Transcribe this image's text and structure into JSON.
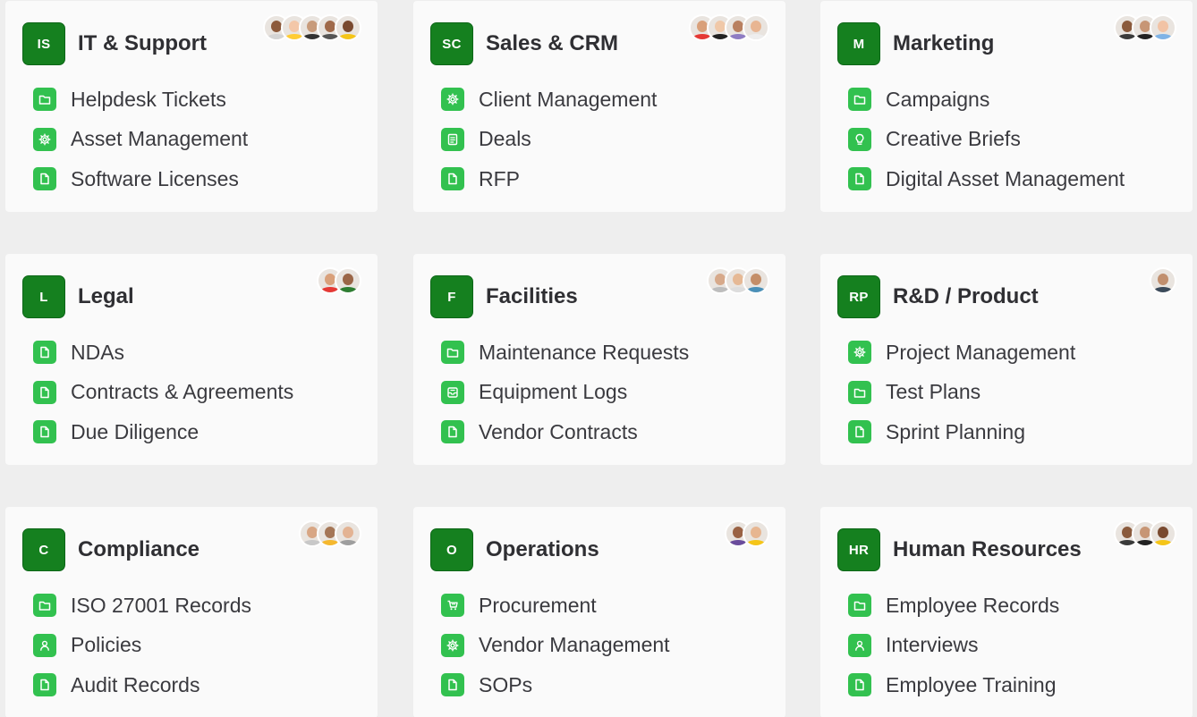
{
  "colors": {
    "background": "#eeeeee",
    "card": "#fafafa",
    "badge": "#15801f",
    "icon": "#32c14f",
    "title": "#2f2f33",
    "text": "#3a3a3f"
  },
  "workspaces": [
    {
      "initials": "IS",
      "name": "IT & Support",
      "members": [
        {
          "skin": "#8d5a3b",
          "shirt": "#d4d4d4"
        },
        {
          "skin": "#f3c7a8",
          "shirt": "#ffcc33"
        },
        {
          "skin": "#c89b7b",
          "shirt": "#333333"
        },
        {
          "skin": "#a06a4a",
          "shirt": "#555555"
        },
        {
          "skin": "#7a4a30",
          "shirt": "#f5c518"
        }
      ],
      "items": [
        {
          "icon": "folder-icon",
          "label": "Helpdesk Tickets"
        },
        {
          "icon": "gear-icon",
          "label": "Asset Management"
        },
        {
          "icon": "document-icon",
          "label": "Software Licenses"
        }
      ]
    },
    {
      "initials": "SC",
      "name": "Sales & CRM",
      "members": [
        {
          "skin": "#d9a07a",
          "shirt": "#e53935"
        },
        {
          "skin": "#f0c8a8",
          "shirt": "#222222"
        },
        {
          "skin": "#b98060",
          "shirt": "#8e7cc3"
        },
        {
          "skin": "#e8b592",
          "shirt": "#eeeeee"
        }
      ],
      "items": [
        {
          "icon": "gear-icon",
          "label": "Client Management"
        },
        {
          "icon": "clipboard-icon",
          "label": "Deals"
        },
        {
          "icon": "document-icon",
          "label": "RFP"
        }
      ]
    },
    {
      "initials": "M",
      "name": "Marketing",
      "members": [
        {
          "skin": "#8a5a3c",
          "shirt": "#3a3a3a"
        },
        {
          "skin": "#c79675",
          "shirt": "#222222"
        },
        {
          "skin": "#f2c3a5",
          "shirt": "#7fb3e6"
        }
      ],
      "items": [
        {
          "icon": "folder-icon",
          "label": "Campaigns"
        },
        {
          "icon": "lightbulb-icon",
          "label": "Creative Briefs"
        },
        {
          "icon": "document-icon",
          "label": "Digital Asset Management"
        }
      ]
    },
    {
      "initials": "L",
      "name": "Legal",
      "members": [
        {
          "skin": "#d9a07a",
          "shirt": "#e53935"
        },
        {
          "skin": "#9b6647",
          "shirt": "#2e7d32"
        }
      ],
      "items": [
        {
          "icon": "document-icon",
          "label": "NDAs"
        },
        {
          "icon": "document-icon",
          "label": "Contracts & Agreements"
        },
        {
          "icon": "document-icon",
          "label": "Due Diligence"
        }
      ]
    },
    {
      "initials": "F",
      "name": "Facilities",
      "members": [
        {
          "skin": "#d7a98a",
          "shirt": "#bdbdbd"
        },
        {
          "skin": "#e6b995",
          "shirt": "#dddddd"
        },
        {
          "skin": "#c48e68",
          "shirt": "#4a90b8"
        }
      ],
      "items": [
        {
          "icon": "folder-icon",
          "label": "Maintenance Requests"
        },
        {
          "icon": "inbox-icon",
          "label": "Equipment Logs"
        },
        {
          "icon": "document-icon",
          "label": "Vendor Contracts"
        }
      ]
    },
    {
      "initials": "RP",
      "name": "R&D / Product",
      "members": [
        {
          "skin": "#c18f6e",
          "shirt": "#3b4a5a"
        }
      ],
      "items": [
        {
          "icon": "gear-icon",
          "label": "Project Management"
        },
        {
          "icon": "folder-icon",
          "label": "Test Plans"
        },
        {
          "icon": "document-icon",
          "label": "Sprint Planning"
        }
      ]
    },
    {
      "initials": "C",
      "name": "Compliance",
      "members": [
        {
          "skin": "#d8a684",
          "shirt": "#c8c8c8"
        },
        {
          "skin": "#a57656",
          "shirt": "#f5b82e"
        },
        {
          "skin": "#e3b393",
          "shirt": "#9e9e9e"
        }
      ],
      "items": [
        {
          "icon": "folder-icon",
          "label": "ISO 27001 Records"
        },
        {
          "icon": "person-icon",
          "label": "Policies"
        },
        {
          "icon": "document-icon",
          "label": "Audit Records"
        }
      ]
    },
    {
      "initials": "O",
      "name": "Operations",
      "members": [
        {
          "skin": "#9a6244",
          "shirt": "#6a4c9c"
        },
        {
          "skin": "#e7b691",
          "shirt": "#f5c518"
        }
      ],
      "items": [
        {
          "icon": "cart-icon",
          "label": "Procurement"
        },
        {
          "icon": "gear-icon",
          "label": "Vendor Management"
        },
        {
          "icon": "document-icon",
          "label": "SOPs"
        }
      ]
    },
    {
      "initials": "HR",
      "name": "Human Resources",
      "members": [
        {
          "skin": "#8a5a3c",
          "shirt": "#3a3a3a"
        },
        {
          "skin": "#c79675",
          "shirt": "#222222"
        },
        {
          "skin": "#7a4a30",
          "shirt": "#f5c518"
        }
      ],
      "items": [
        {
          "icon": "folder-icon",
          "label": "Employee Records"
        },
        {
          "icon": "person-icon",
          "label": "Interviews"
        },
        {
          "icon": "document-icon",
          "label": "Employee Training"
        }
      ]
    }
  ]
}
